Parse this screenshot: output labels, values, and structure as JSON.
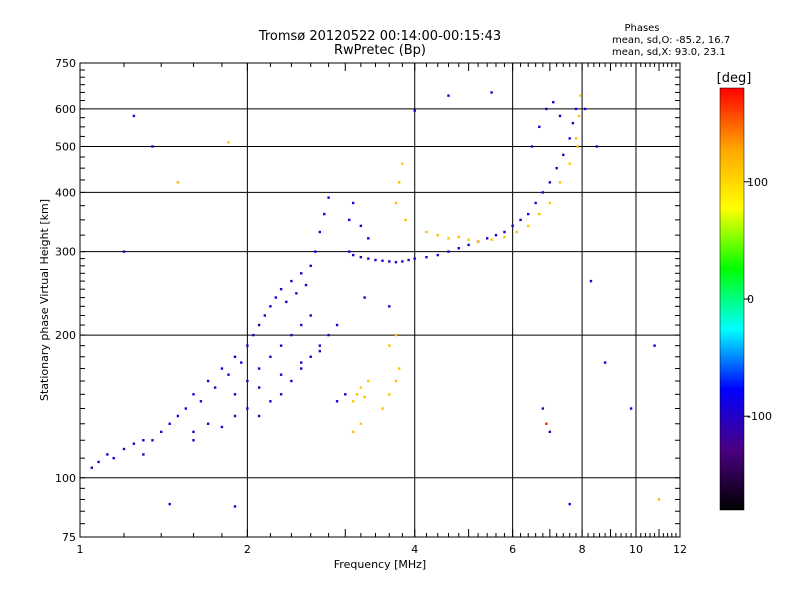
{
  "chart_data": {
    "type": "scatter",
    "title": "Tromsø 20120522 00:14:00-00:15:43",
    "subtitle": "RwPretec (Bp)",
    "xlabel": "Frequency [MHz]",
    "ylabel": "Stationary phase Virtual Height [km]",
    "x_scale": "log",
    "y_scale": "log",
    "xlim": [
      1,
      12
    ],
    "ylim": [
      75,
      750
    ],
    "x_ticks": [
      1,
      2,
      4,
      6,
      8,
      10,
      12
    ],
    "y_ticks": [
      75,
      100,
      200,
      300,
      400,
      500,
      600,
      750
    ],
    "x_gridlines": [
      2,
      4,
      6,
      8,
      10
    ],
    "y_gridlines": [
      100,
      200,
      300,
      400,
      500,
      600
    ],
    "grid": true,
    "phases_box": {
      "heading": "Phases",
      "line1": "mean, sd,O: -85.2, 16.7",
      "line2": "mean, sd,X:  93.0, 23.1"
    },
    "colorbar": {
      "label": "[deg]",
      "ticks": [
        "100",
        "0",
        "-100"
      ],
      "tick_values": [
        100,
        0,
        -100
      ],
      "range": [
        -180,
        180
      ],
      "colormap": [
        "#000000",
        "#4b0082",
        "#0000ff",
        "#00ffff",
        "#00ff00",
        "#ffff00",
        "#ffa500",
        "#ff0000"
      ]
    },
    "series": [
      {
        "points": [
          [
            1.05,
            105,
            -100
          ],
          [
            1.08,
            108,
            -95
          ],
          [
            1.12,
            112,
            -100
          ],
          [
            1.15,
            110,
            -95
          ],
          [
            1.2,
            115,
            -100
          ],
          [
            1.25,
            118,
            -95
          ],
          [
            1.3,
            112,
            -100
          ],
          [
            1.35,
            120,
            -95
          ],
          [
            1.4,
            125,
            -100
          ],
          [
            1.45,
            130,
            -100
          ],
          [
            1.5,
            135,
            -95
          ],
          [
            1.55,
            140,
            -100
          ],
          [
            1.6,
            150,
            -95
          ],
          [
            1.65,
            145,
            -100
          ],
          [
            1.7,
            160,
            -95
          ],
          [
            1.75,
            155,
            -100
          ],
          [
            1.8,
            170,
            -95
          ],
          [
            1.85,
            165,
            -100
          ],
          [
            1.9,
            180,
            -95
          ],
          [
            1.95,
            175,
            -100
          ],
          [
            2.0,
            190,
            -95
          ],
          [
            2.05,
            200,
            -100
          ],
          [
            2.1,
            210,
            -95
          ],
          [
            2.15,
            220,
            -100
          ],
          [
            2.2,
            230,
            -95
          ],
          [
            2.25,
            240,
            -100
          ],
          [
            2.3,
            250,
            -95
          ],
          [
            2.35,
            235,
            -100
          ],
          [
            2.4,
            260,
            -95
          ],
          [
            2.45,
            245,
            -100
          ],
          [
            2.5,
            270,
            -95
          ],
          [
            2.55,
            255,
            -100
          ],
          [
            2.6,
            280,
            -95
          ],
          [
            2.65,
            300,
            -90
          ],
          [
            2.7,
            330,
            -85
          ],
          [
            2.75,
            360,
            -80
          ],
          [
            2.8,
            390,
            -75
          ],
          [
            1.6,
            125,
            -100
          ],
          [
            1.7,
            130,
            -100
          ],
          [
            1.8,
            128,
            -95
          ],
          [
            1.9,
            135,
            -100
          ],
          [
            2.0,
            140,
            -95
          ],
          [
            2.1,
            135,
            -100
          ],
          [
            2.2,
            145,
            -95
          ],
          [
            2.3,
            150,
            -100
          ],
          [
            2.4,
            160,
            -95
          ],
          [
            2.5,
            170,
            -100
          ],
          [
            2.6,
            180,
            -95
          ],
          [
            2.7,
            190,
            -100
          ],
          [
            2.8,
            200,
            -95
          ],
          [
            2.9,
            210,
            -100
          ],
          [
            2.0,
            160,
            -100
          ],
          [
            2.1,
            170,
            -95
          ],
          [
            2.2,
            180,
            -100
          ],
          [
            2.3,
            190,
            -95
          ],
          [
            2.4,
            200,
            -100
          ],
          [
            2.5,
            210,
            -95
          ],
          [
            2.6,
            220,
            -100
          ],
          [
            1.9,
            150,
            -100
          ],
          [
            2.1,
            155,
            -95
          ],
          [
            2.3,
            165,
            -100
          ],
          [
            2.5,
            175,
            -95
          ],
          [
            2.7,
            185,
            -100
          ],
          [
            2.9,
            145,
            -90
          ],
          [
            3.0,
            150,
            -85
          ]
        ]
      },
      {
        "points": [
          [
            3.05,
            300,
            -95
          ],
          [
            3.1,
            295,
            -100
          ],
          [
            3.2,
            292,
            -95
          ],
          [
            3.3,
            290,
            -100
          ],
          [
            3.4,
            288,
            -95
          ],
          [
            3.5,
            287,
            -100
          ],
          [
            3.6,
            286,
            -95
          ],
          [
            3.7,
            285,
            -100
          ],
          [
            3.8,
            286,
            -95
          ],
          [
            3.9,
            288,
            -100
          ],
          [
            4.0,
            290,
            -95
          ],
          [
            4.2,
            292,
            -100
          ],
          [
            4.4,
            295,
            -95
          ],
          [
            4.6,
            300,
            -100
          ],
          [
            4.8,
            305,
            -95
          ],
          [
            5.0,
            310,
            -100
          ],
          [
            5.2,
            315,
            -95
          ],
          [
            5.4,
            320,
            -100
          ],
          [
            5.6,
            325,
            -95
          ],
          [
            5.8,
            330,
            -100
          ],
          [
            6.0,
            340,
            -95
          ],
          [
            6.2,
            350,
            -100
          ],
          [
            6.4,
            360,
            -95
          ],
          [
            6.6,
            380,
            -100
          ],
          [
            6.8,
            400,
            -95
          ],
          [
            7.0,
            420,
            -100
          ],
          [
            7.2,
            450,
            -95
          ],
          [
            7.4,
            480,
            -100
          ],
          [
            7.6,
            520,
            -95
          ],
          [
            7.7,
            560,
            -100
          ],
          [
            7.8,
            600,
            -95
          ],
          [
            3.05,
            350,
            -90
          ],
          [
            3.1,
            380,
            -95
          ],
          [
            3.2,
            340,
            -100
          ],
          [
            3.3,
            320,
            -95
          ],
          [
            6.5,
            500,
            -100
          ],
          [
            6.7,
            550,
            -95
          ],
          [
            6.9,
            600,
            -100
          ],
          [
            7.1,
            620,
            -95
          ],
          [
            7.3,
            580,
            -100
          ]
        ]
      },
      {
        "points": [
          [
            3.1,
            145,
            110
          ],
          [
            3.15,
            150,
            115
          ],
          [
            3.2,
            155,
            105
          ],
          [
            3.25,
            148,
            120
          ],
          [
            3.3,
            160,
            110
          ],
          [
            3.1,
            125,
            115
          ],
          [
            3.2,
            130,
            110
          ],
          [
            3.5,
            140,
            115
          ],
          [
            3.6,
            150,
            110
          ],
          [
            3.7,
            160,
            120
          ],
          [
            3.75,
            170,
            110
          ],
          [
            3.6,
            190,
            115
          ],
          [
            3.7,
            200,
            110
          ],
          [
            3.7,
            380,
            120
          ],
          [
            3.75,
            420,
            115
          ],
          [
            3.8,
            460,
            110
          ],
          [
            3.85,
            350,
            115
          ],
          [
            4.2,
            330,
            110
          ],
          [
            4.4,
            325,
            115
          ],
          [
            4.6,
            320,
            110
          ],
          [
            4.8,
            322,
            120
          ],
          [
            5.0,
            318,
            115
          ],
          [
            5.2,
            315,
            110
          ],
          [
            5.5,
            318,
            115
          ],
          [
            5.8,
            322,
            110
          ],
          [
            6.1,
            330,
            115
          ],
          [
            6.4,
            340,
            110
          ],
          [
            6.7,
            360,
            115
          ],
          [
            7.0,
            380,
            110
          ],
          [
            7.3,
            420,
            115
          ],
          [
            7.6,
            460,
            110
          ],
          [
            7.8,
            520,
            115
          ],
          [
            7.9,
            580,
            110
          ],
          [
            7.95,
            640,
            115
          ],
          [
            7.85,
            500,
            120
          ]
        ]
      },
      {
        "points": [
          [
            1.3,
            120,
            -100
          ],
          [
            1.2,
            300,
            -95
          ],
          [
            1.25,
            580,
            -100
          ],
          [
            1.35,
            500,
            -95
          ],
          [
            1.5,
            420,
            120
          ],
          [
            1.85,
            510,
            110
          ],
          [
            3.25,
            240,
            -100
          ],
          [
            3.6,
            230,
            -95
          ],
          [
            4.0,
            595,
            -100
          ],
          [
            4.6,
            640,
            -95
          ],
          [
            5.5,
            650,
            -100
          ],
          [
            6.8,
            140,
            -110
          ],
          [
            7.0,
            125,
            -100
          ],
          [
            8.1,
            600,
            -95
          ],
          [
            8.3,
            260,
            -100
          ],
          [
            8.8,
            175,
            -100
          ],
          [
            9.8,
            140,
            -95
          ],
          [
            10.8,
            190,
            -100
          ],
          [
            11.0,
            90,
            120
          ],
          [
            7.6,
            88,
            -100
          ],
          [
            6.9,
            130,
            170
          ],
          [
            1.45,
            88,
            -100
          ],
          [
            1.6,
            120,
            -100
          ],
          [
            1.9,
            87,
            -100
          ],
          [
            8.5,
            500,
            -100
          ]
        ]
      }
    ]
  }
}
